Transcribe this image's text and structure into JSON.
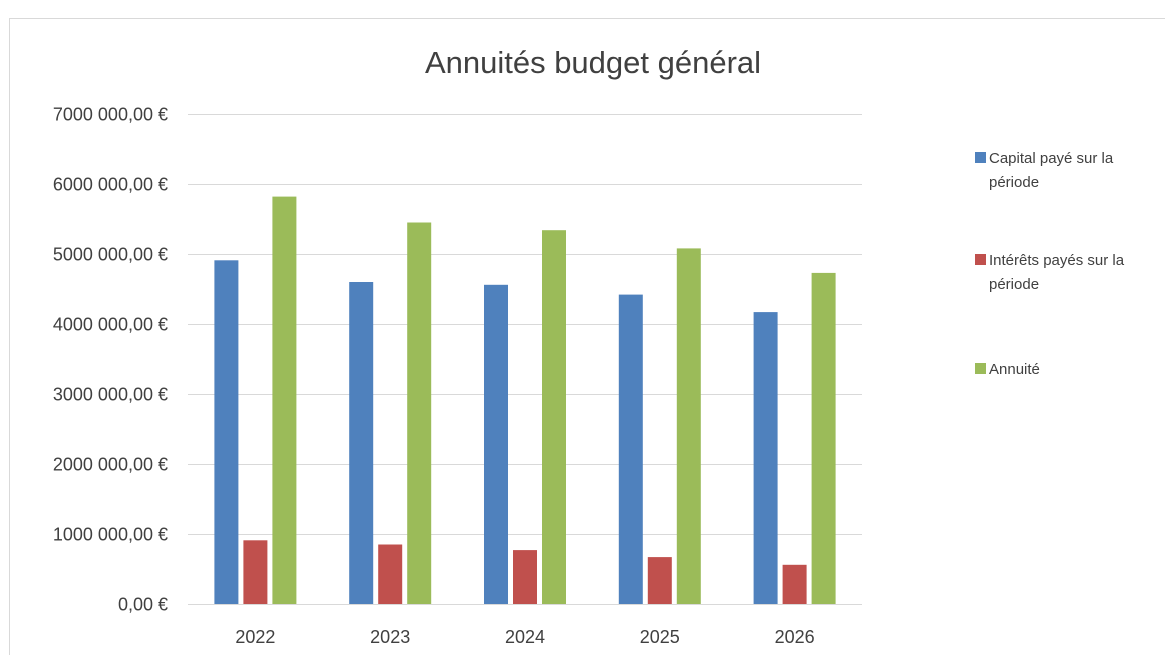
{
  "chart_data": {
    "type": "bar",
    "title": "Annuités budget général",
    "xlabel": "",
    "ylabel": "",
    "categories": [
      "2022",
      "2023",
      "2024",
      "2025",
      "2026"
    ],
    "series": [
      {
        "name": "Capital payé sur la période",
        "legend_lines": [
          "Capital payé sur la",
          "période"
        ],
        "color": "#4f81bd",
        "values": [
          4910000,
          4600000,
          4560000,
          4420000,
          4170000
        ]
      },
      {
        "name": "Intérêts payés sur la période",
        "legend_lines": [
          "Intérêts payés sur la",
          "période"
        ],
        "color": "#c0504d",
        "values": [
          910000,
          850000,
          770000,
          670000,
          560000
        ]
      },
      {
        "name": "Annuité",
        "legend_lines": [
          "Annuité"
        ],
        "color": "#9bbb59",
        "values": [
          5820000,
          5450000,
          5340000,
          5080000,
          4730000
        ]
      }
    ],
    "ylim": [
      0,
      7000000
    ],
    "yticks": [
      {
        "value": 0,
        "label": "0,00 €"
      },
      {
        "value": 1000000,
        "label": "1000 000,00 €"
      },
      {
        "value": 2000000,
        "label": "2000 000,00 €"
      },
      {
        "value": 3000000,
        "label": "3000 000,00 €"
      },
      {
        "value": 4000000,
        "label": "4000 000,00 €"
      },
      {
        "value": 5000000,
        "label": "5000 000,00 €"
      },
      {
        "value": 6000000,
        "label": "6000 000,00 €"
      },
      {
        "value": 7000000,
        "label": "7000 000,00 €"
      }
    ],
    "grid": true,
    "legend_position": "right",
    "colors": {
      "gridline": "#d9d9d9",
      "text": "#404040"
    }
  }
}
